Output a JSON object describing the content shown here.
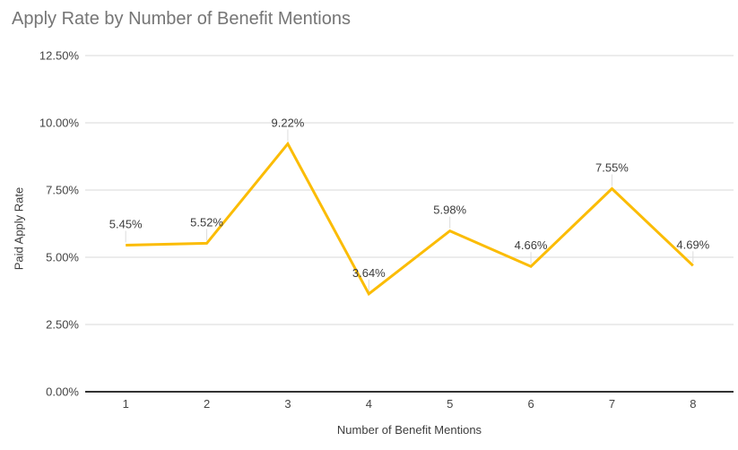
{
  "chart_data": {
    "type": "line",
    "title": "Apply Rate by Number of Benefit Mentions",
    "xlabel": "Number of Benefit Mentions",
    "ylabel": "Paid Apply Rate",
    "categories": [
      "1",
      "2",
      "3",
      "4",
      "5",
      "6",
      "7",
      "8"
    ],
    "values": [
      5.45,
      5.52,
      9.22,
      3.64,
      5.98,
      4.66,
      7.55,
      4.69
    ],
    "point_labels": [
      "5.45%",
      "5.52%",
      "9.22%",
      "3.64%",
      "5.98%",
      "4.66%",
      "7.55%",
      "4.69%"
    ],
    "y_ticks": [
      {
        "label": "0.00%",
        "value": 0
      },
      {
        "label": "2.50%",
        "value": 2.5
      },
      {
        "label": "5.00%",
        "value": 5
      },
      {
        "label": "7.50%",
        "value": 7.5
      },
      {
        "label": "10.00%",
        "value": 10
      },
      {
        "label": "12.50%",
        "value": 12.5
      }
    ],
    "ylim": [
      0,
      12.5
    ],
    "grid": "horizontal-only",
    "legend": "none",
    "markers": "none",
    "colors": {
      "series": "#FBBC04",
      "grid": "#E6E6E6",
      "axis_line": "#333333",
      "tick_text": "#444444",
      "data_label": "#3C3C3C",
      "leader_line": "#DCDCDC",
      "title": "#757575",
      "axis_title": "#3C3C3C"
    }
  }
}
